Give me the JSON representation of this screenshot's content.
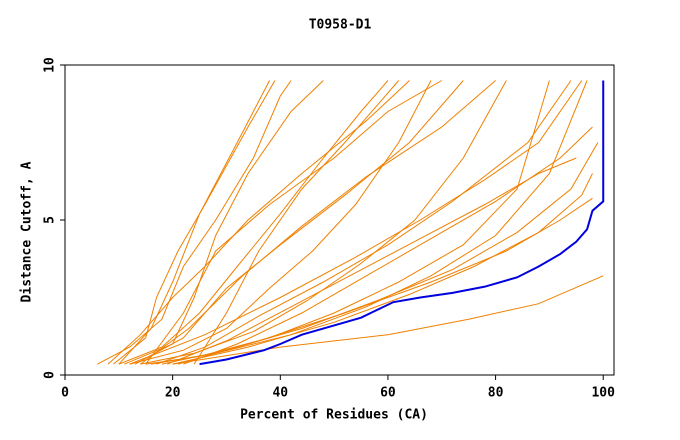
{
  "chart_data": {
    "type": "line",
    "title": "T0958-D1",
    "x_label": "Percent of Residues (CA)",
    "y_label": "Distance Cutoff, A",
    "xlim": [
      0,
      102
    ],
    "ylim": [
      0,
      10
    ],
    "xticks": [
      0,
      20,
      40,
      60,
      80,
      100
    ],
    "yticks": [
      0,
      5,
      10
    ],
    "series": [
      {
        "color": "#f08000",
        "x": [
          6,
          12,
          18,
          22,
          28,
          35,
          40,
          42
        ],
        "values": [
          0.35,
          0.9,
          1.8,
          3.5,
          5,
          7,
          9,
          9.5
        ]
      },
      {
        "color": "#f08000",
        "x": [
          9,
          15,
          17,
          21,
          26,
          34,
          39
        ],
        "values": [
          0.35,
          1.2,
          2.5,
          4,
          5.5,
          8,
          9.5
        ]
      },
      {
        "color": "#f08000",
        "x": [
          10,
          18,
          25,
          32,
          40,
          48,
          55,
          60
        ],
        "values": [
          0.35,
          0.9,
          2,
          3.5,
          5.2,
          7,
          8.5,
          9.5
        ]
      },
      {
        "color": "#f08000",
        "x": [
          12,
          22,
          30,
          38,
          46,
          54,
          62,
          68
        ],
        "values": [
          0.35,
          0.8,
          1.5,
          2.8,
          4,
          5.5,
          7.5,
          9.5
        ]
      },
      {
        "color": "#f08000",
        "x": [
          14,
          24,
          35,
          45,
          55,
          65,
          74,
          82
        ],
        "values": [
          0.35,
          0.7,
          1.4,
          2.4,
          3.6,
          5,
          7,
          9.5
        ]
      },
      {
        "color": "#f08000",
        "x": [
          15,
          25,
          38,
          50,
          62,
          74,
          84,
          90
        ],
        "values": [
          0.35,
          0.6,
          1.2,
          2,
          3,
          4.2,
          6,
          9.5
        ]
      },
      {
        "color": "#f08000",
        "x": [
          16,
          28,
          42,
          56,
          68,
          80,
          90,
          97
        ],
        "values": [
          0.35,
          0.7,
          1.3,
          2.2,
          3.2,
          4.5,
          6.5,
          9.5
        ]
      },
      {
        "color": "#f08000",
        "x": [
          11,
          20,
          24,
          28,
          34,
          42,
          48
        ],
        "values": [
          0.35,
          1,
          2.5,
          4.5,
          6.5,
          8.5,
          9.5
        ]
      },
      {
        "color": "#f08000",
        "x": [
          13,
          22,
          30,
          40,
          52,
          64,
          74
        ],
        "values": [
          0.35,
          1.2,
          2.8,
          4.2,
          5.8,
          7.5,
          9.5
        ]
      },
      {
        "color": "#f08000",
        "x": [
          17,
          26,
          36,
          48,
          60,
          72,
          86,
          94
        ],
        "values": [
          0.35,
          0.9,
          1.9,
          3,
          4.2,
          5.6,
          7.5,
          9.5
        ]
      },
      {
        "color": "#f08000",
        "x": [
          18,
          30,
          44,
          58,
          72,
          84,
          94,
          99
        ],
        "values": [
          0.35,
          0.8,
          1.5,
          2.4,
          3.4,
          4.6,
          6,
          7.5
        ]
      },
      {
        "color": "#f08000",
        "x": [
          20,
          34,
          50,
          64,
          76,
          88,
          96,
          98
        ],
        "values": [
          0.35,
          0.9,
          1.7,
          2.6,
          3.5,
          4.6,
          5.8,
          6.5
        ]
      },
      {
        "color": "#f08000",
        "x": [
          20,
          40,
          60,
          75,
          88,
          96,
          100
        ],
        "values": [
          0.35,
          0.9,
          1.3,
          1.8,
          2.3,
          2.9,
          3.2
        ]
      },
      {
        "color": "#f08000",
        "x": [
          22,
          32,
          44,
          56,
          68,
          80,
          92,
          98
        ],
        "values": [
          0.35,
          1,
          2,
          3.2,
          4.4,
          5.6,
          7,
          8
        ]
      },
      {
        "color": "#f08000",
        "x": [
          10,
          16,
          20,
          25,
          32,
          38
        ],
        "values": [
          0.35,
          1.5,
          3,
          5.2,
          7.5,
          9.5
        ]
      },
      {
        "color": "#f08000",
        "x": [
          14,
          23,
          33,
          44,
          56,
          70,
          80
        ],
        "values": [
          0.35,
          1.5,
          3.2,
          4.8,
          6.4,
          8,
          9.5
        ]
      },
      {
        "color": "#f08000",
        "x": [
          12,
          26,
          40,
          54,
          66,
          78,
          88,
          96
        ],
        "values": [
          0.35,
          1.3,
          2.5,
          3.8,
          5,
          6.3,
          7.5,
          9.5
        ]
      },
      {
        "color": "#f08000",
        "x": [
          19,
          30,
          42,
          54,
          66,
          78,
          88,
          95
        ],
        "values": [
          0.35,
          1.1,
          2.2,
          3.3,
          4.4,
          5.5,
          6.5,
          7
        ]
      },
      {
        "color": "#f08000",
        "x": [
          21,
          36,
          52,
          68,
          82,
          92,
          98
        ],
        "values": [
          0.35,
          1.1,
          2,
          3,
          4,
          5,
          5.7
        ]
      },
      {
        "color": "#f08000",
        "x": [
          24,
          30,
          36,
          44,
          52,
          62
        ],
        "values": [
          0.35,
          2,
          4,
          6,
          7.5,
          9.5
        ]
      },
      {
        "color": "#f08000",
        "x": [
          8,
          14,
          20,
          26,
          34,
          44,
          56,
          64
        ],
        "values": [
          0.35,
          1.3,
          2.5,
          3.5,
          5,
          6.5,
          8.2,
          9.5
        ]
      },
      {
        "color": "#f08000",
        "x": [
          15,
          22,
          28,
          38,
          50,
          60,
          70
        ],
        "values": [
          0.35,
          2,
          4,
          5.5,
          7,
          8.5,
          9.5
        ]
      },
      {
        "color": "#0000e0",
        "x": [
          25,
          30,
          37,
          40,
          44,
          50,
          55,
          58,
          61,
          66,
          72,
          78,
          84,
          88,
          92,
          95,
          97,
          98,
          100,
          100
        ],
        "values": [
          0.35,
          0.5,
          0.8,
          1,
          1.3,
          1.6,
          1.85,
          2.1,
          2.35,
          2.5,
          2.65,
          2.85,
          3.15,
          3.5,
          3.9,
          4.3,
          4.7,
          5.3,
          5.6,
          9.5
        ]
      }
    ]
  }
}
